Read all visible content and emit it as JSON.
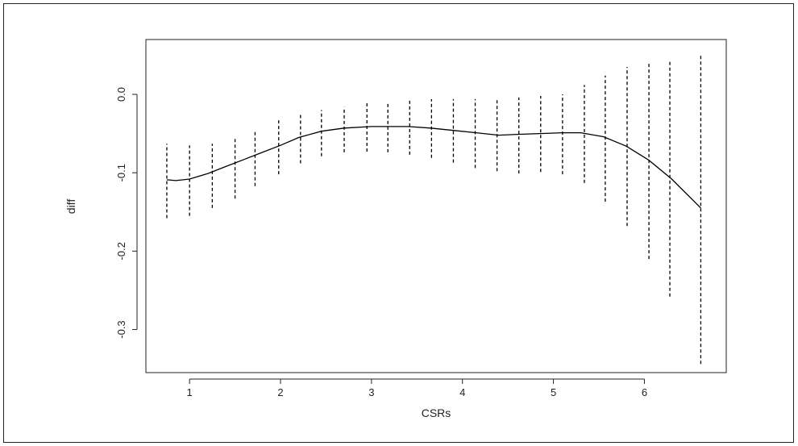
{
  "chart_data": {
    "type": "line",
    "title": "",
    "xlabel": "CSRs",
    "ylabel": "diff",
    "xlim": [
      0.52,
      6.9
    ],
    "ylim": [
      -0.355,
      0.07
    ],
    "x_ticks": [
      1,
      2,
      3,
      4,
      5,
      6
    ],
    "x_tick_labels": [
      "1",
      "2",
      "3",
      "4",
      "5",
      "6"
    ],
    "y_ticks": [
      0.0,
      -0.1,
      -0.2,
      -0.3
    ],
    "y_tick_labels": [
      "0.0",
      "-0.1",
      "-0.2",
      "-0.3"
    ],
    "grid": false,
    "legend": "none",
    "series": [
      {
        "style": "solid",
        "color": "#000000",
        "x": [
          0.75,
          0.85,
          1.0,
          1.2,
          1.4,
          1.6,
          1.8,
          2.0,
          2.2,
          2.45,
          2.7,
          3.0,
          3.2,
          3.4,
          3.65,
          3.9,
          4.15,
          4.4,
          4.6,
          4.85,
          5.1,
          5.3,
          5.55,
          5.8,
          6.05,
          6.3,
          6.62
        ],
        "y": [
          -0.109,
          -0.11,
          -0.108,
          -0.101,
          -0.092,
          -0.083,
          -0.074,
          -0.065,
          -0.055,
          -0.047,
          -0.043,
          -0.041,
          -0.041,
          -0.041,
          -0.043,
          -0.046,
          -0.049,
          -0.052,
          -0.051,
          -0.05,
          -0.049,
          -0.049,
          -0.054,
          -0.066,
          -0.084,
          -0.108,
          -0.145
        ]
      }
    ],
    "intervals": {
      "style": "dashed",
      "color": "#000000",
      "x": [
        0.75,
        1.0,
        1.25,
        1.5,
        1.72,
        1.98,
        2.22,
        2.45,
        2.7,
        2.95,
        3.18,
        3.42,
        3.66,
        3.9,
        4.14,
        4.38,
        4.62,
        4.86,
        5.1,
        5.34,
        5.57,
        5.81,
        6.05,
        6.28,
        6.62
      ],
      "lower": [
        -0.158,
        -0.155,
        -0.145,
        -0.133,
        -0.117,
        -0.102,
        -0.088,
        -0.079,
        -0.074,
        -0.073,
        -0.074,
        -0.077,
        -0.081,
        -0.087,
        -0.094,
        -0.098,
        -0.101,
        -0.099,
        -0.102,
        -0.113,
        -0.137,
        -0.168,
        -0.21,
        -0.258,
        -0.344
      ],
      "upper": [
        -0.063,
        -0.065,
        -0.063,
        -0.057,
        -0.046,
        -0.033,
        -0.024,
        -0.02,
        -0.016,
        -0.011,
        -0.011,
        -0.008,
        -0.006,
        -0.006,
        -0.006,
        -0.006,
        -0.004,
        -0.002,
        0.0,
        0.012,
        0.024,
        0.035,
        0.042,
        0.042,
        0.051
      ]
    }
  }
}
